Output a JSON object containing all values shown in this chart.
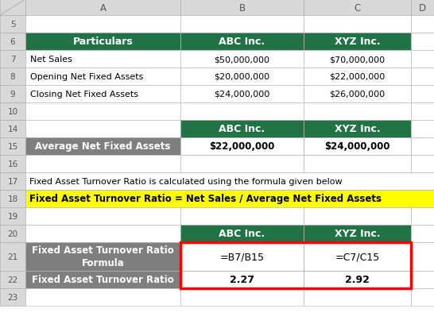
{
  "fig_width": 5.46,
  "fig_height": 4.14,
  "dpi": 100,
  "bg_color": "#FFFFFF",
  "green_header": "#217346",
  "gray_row": "#7F7F7F",
  "yellow_bg": "#FFFF00",
  "red_border": "#FF0000",
  "white": "#FFFFFF",
  "black": "#000000",
  "header_bg": "#D9D9D9",
  "grid_line": "#B0B0B0",
  "table1_header": [
    "Particulars",
    "ABC Inc.",
    "XYZ Inc."
  ],
  "table1_rows": [
    [
      "Net Sales",
      "$50,000,000",
      "$70,000,000"
    ],
    [
      "Opening Net Fixed Assets",
      "$20,000,000",
      "$22,000,000"
    ],
    [
      "Closing Net Fixed Assets",
      "$24,000,000",
      "$26,000,000"
    ]
  ],
  "table2_row": [
    "Average Net Fixed Assets",
    "$22,000,000",
    "$24,000,000"
  ],
  "formula_text": "Fixed Asset Turnover Ratio = Net Sales / Average Net Fixed Assets",
  "desc_text": "Fixed Asset Turnover Ratio is calculated using the formula given below",
  "table3_rows": [
    [
      "Fixed Asset Turnover Ratio\nFormula",
      "=B7/B15",
      "=C7/C15"
    ],
    [
      "Fixed Asset Turnover Ratio",
      "2.27",
      "2.92"
    ]
  ]
}
